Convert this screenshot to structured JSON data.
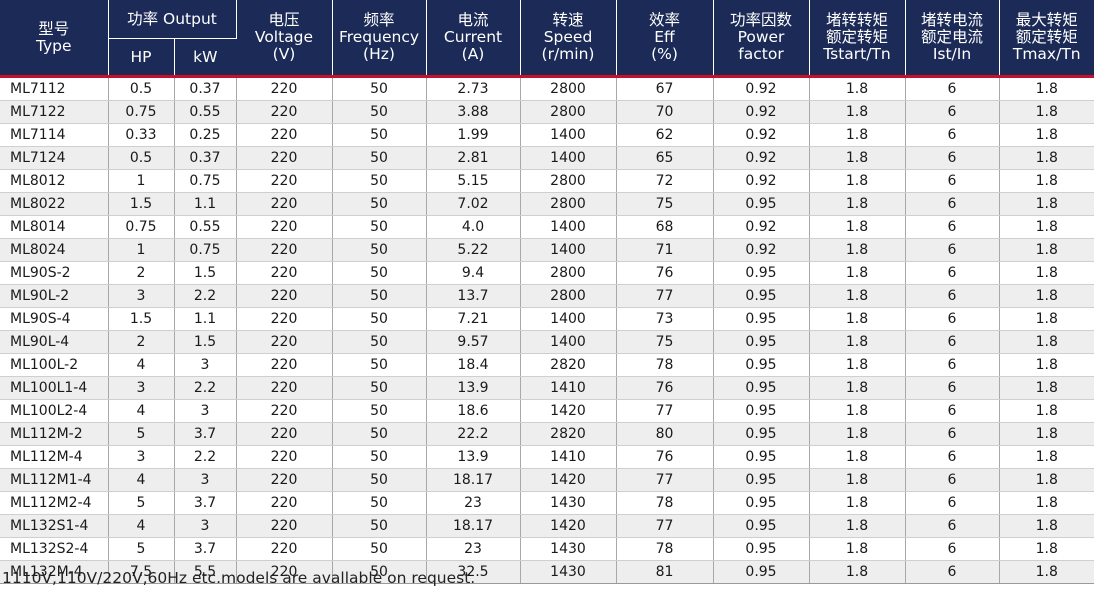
{
  "headers": {
    "type": [
      "型号",
      "Type"
    ],
    "output": "功率 Output",
    "hp": "HP",
    "kw": "kW",
    "voltage": [
      "电压",
      "Voltage",
      "(V)"
    ],
    "frequency": [
      "频率",
      "Frequency",
      "(Hz)"
    ],
    "current": [
      "电流",
      "Current",
      "(A)"
    ],
    "speed": [
      "转速",
      "Speed",
      "(r/min)"
    ],
    "eff": [
      "效率",
      "Eff",
      "(%)"
    ],
    "pf": [
      "功率因数",
      "Power",
      "factor"
    ],
    "tstart": [
      "堵转转矩",
      "额定转矩",
      "Tstart/Tn"
    ],
    "ist": [
      "堵转电流",
      "额定电流",
      "Ist/In"
    ],
    "tmax": [
      "最大转矩",
      "额定转矩",
      "Tmax/Tn"
    ]
  },
  "rows": [
    [
      "ML7112",
      "0.5",
      "0.37",
      "220",
      "50",
      "2.73",
      "2800",
      "67",
      "0.92",
      "1.8",
      "6",
      "1.8"
    ],
    [
      "ML7122",
      "0.75",
      "0.55",
      "220",
      "50",
      "3.88",
      "2800",
      "70",
      "0.92",
      "1.8",
      "6",
      "1.8"
    ],
    [
      "ML7114",
      "0.33",
      "0.25",
      "220",
      "50",
      "1.99",
      "1400",
      "62",
      "0.92",
      "1.8",
      "6",
      "1.8"
    ],
    [
      "ML7124",
      "0.5",
      "0.37",
      "220",
      "50",
      "2.81",
      "1400",
      "65",
      "0.92",
      "1.8",
      "6",
      "1.8"
    ],
    [
      "ML8012",
      "1",
      "0.75",
      "220",
      "50",
      "5.15",
      "2800",
      "72",
      "0.92",
      "1.8",
      "6",
      "1.8"
    ],
    [
      "ML8022",
      "1.5",
      "1.1",
      "220",
      "50",
      "7.02",
      "2800",
      "75",
      "0.95",
      "1.8",
      "6",
      "1.8"
    ],
    [
      "ML8014",
      "0.75",
      "0.55",
      "220",
      "50",
      "4.0",
      "1400",
      "68",
      "0.92",
      "1.8",
      "6",
      "1.8"
    ],
    [
      "ML8024",
      "1",
      "0.75",
      "220",
      "50",
      "5.22",
      "1400",
      "71",
      "0.92",
      "1.8",
      "6",
      "1.8"
    ],
    [
      "ML90S-2",
      "2",
      "1.5",
      "220",
      "50",
      "9.4",
      "2800",
      "76",
      "0.95",
      "1.8",
      "6",
      "1.8"
    ],
    [
      "ML90L-2",
      "3",
      "2.2",
      "220",
      "50",
      "13.7",
      "2800",
      "77",
      "0.95",
      "1.8",
      "6",
      "1.8"
    ],
    [
      "ML90S-4",
      "1.5",
      "1.1",
      "220",
      "50",
      "7.21",
      "1400",
      "73",
      "0.95",
      "1.8",
      "6",
      "1.8"
    ],
    [
      "ML90L-4",
      "2",
      "1.5",
      "220",
      "50",
      "9.57",
      "1400",
      "75",
      "0.95",
      "1.8",
      "6",
      "1.8"
    ],
    [
      "ML100L-2",
      "4",
      "3",
      "220",
      "50",
      "18.4",
      "2820",
      "78",
      "0.95",
      "1.8",
      "6",
      "1.8"
    ],
    [
      "ML100L1-4",
      "3",
      "2.2",
      "220",
      "50",
      "13.9",
      "1410",
      "76",
      "0.95",
      "1.8",
      "6",
      "1.8"
    ],
    [
      "ML100L2-4",
      "4",
      "3",
      "220",
      "50",
      "18.6",
      "1420",
      "77",
      "0.95",
      "1.8",
      "6",
      "1.8"
    ],
    [
      "ML112M-2",
      "5",
      "3.7",
      "220",
      "50",
      "22.2",
      "2820",
      "80",
      "0.95",
      "1.8",
      "6",
      "1.8"
    ],
    [
      "ML112M-4",
      "3",
      "2.2",
      "220",
      "50",
      "13.9",
      "1410",
      "76",
      "0.95",
      "1.8",
      "6",
      "1.8"
    ],
    [
      "ML112M1-4",
      "4",
      "3",
      "220",
      "50",
      "18.17",
      "1420",
      "77",
      "0.95",
      "1.8",
      "6",
      "1.8"
    ],
    [
      "ML112M2-4",
      "5",
      "3.7",
      "220",
      "50",
      "23",
      "1430",
      "78",
      "0.95",
      "1.8",
      "6",
      "1.8"
    ],
    [
      "ML132S1-4",
      "4",
      "3",
      "220",
      "50",
      "18.17",
      "1420",
      "77",
      "0.95",
      "1.8",
      "6",
      "1.8"
    ],
    [
      "ML132S2-4",
      "5",
      "3.7",
      "220",
      "50",
      "23",
      "1430",
      "78",
      "0.95",
      "1.8",
      "6",
      "1.8"
    ],
    [
      "ML132M-4",
      "7.5",
      "5.5",
      "220",
      "50",
      "32.5",
      "1430",
      "81",
      "0.95",
      "1.8",
      "6",
      "1.8"
    ]
  ],
  "note": "1110V,110V/220V,60Hz etc.models are avallable on request.",
  "colors": {
    "header_bg": "#1b2a56",
    "header_rule": "#c8102e",
    "stripe": "#eeeeee"
  }
}
